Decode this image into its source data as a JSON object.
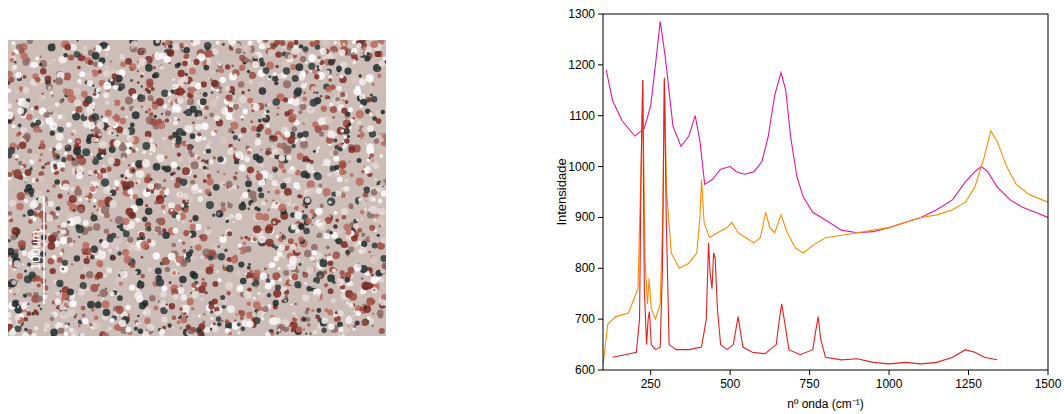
{
  "chart_data": {
    "type": "line",
    "x_label": "nº onda (cm⁻¹)",
    "y_label": "Intensidade",
    "xlim": [
      100,
      1500
    ],
    "ylim": [
      600,
      1300
    ],
    "xticks": [
      250,
      500,
      750,
      1000,
      1250,
      1500
    ],
    "yticks": [
      600,
      700,
      800,
      900,
      1000,
      1100,
      1200,
      1300
    ],
    "grid": false,
    "series": [
      {
        "color": "#e0189c",
        "x": [
          110,
          130,
          160,
          200,
          230,
          250,
          265,
          280,
          295,
          320,
          345,
          370,
          390,
          405,
          420,
          445,
          470,
          500,
          520,
          545,
          575,
          600,
          620,
          640,
          660,
          675,
          690,
          710,
          730,
          760,
          800,
          850,
          900,
          950,
          1000,
          1050,
          1100,
          1150,
          1200,
          1240,
          1270,
          1290,
          1310,
          1340,
          1380,
          1420,
          1460,
          1500
        ],
        "values": [
          1190,
          1130,
          1090,
          1060,
          1075,
          1120,
          1200,
          1285,
          1220,
          1080,
          1040,
          1060,
          1100,
          1050,
          965,
          975,
          995,
          1000,
          990,
          985,
          990,
          1010,
          1060,
          1140,
          1185,
          1150,
          1060,
          980,
          940,
          910,
          895,
          875,
          870,
          872,
          880,
          890,
          900,
          915,
          935,
          970,
          990,
          1000,
          990,
          960,
          935,
          920,
          910,
          900
        ]
      },
      {
        "color": "#ff8c00",
        "x": [
          100,
          115,
          140,
          180,
          210,
          220,
          225,
          232,
          240,
          245,
          252,
          265,
          280,
          288,
          293,
          300,
          315,
          340,
          370,
          395,
          405,
          410,
          418,
          435,
          460,
          490,
          505,
          525,
          550,
          575,
          595,
          612,
          625,
          640,
          660,
          680,
          705,
          730,
          760,
          800,
          850,
          900,
          950,
          1000,
          1050,
          1100,
          1150,
          1200,
          1240,
          1270,
          1300,
          1320,
          1340,
          1370,
          1400,
          1440,
          1480,
          1500
        ],
        "values": [
          610,
          690,
          705,
          712,
          760,
          1000,
          1170,
          820,
          730,
          780,
          720,
          700,
          730,
          900,
          1170,
          950,
          830,
          800,
          810,
          830,
          900,
          975,
          890,
          860,
          870,
          880,
          890,
          870,
          860,
          850,
          860,
          910,
          880,
          870,
          905,
          870,
          840,
          830,
          845,
          860,
          865,
          870,
          875,
          880,
          890,
          900,
          905,
          915,
          930,
          960,
          1020,
          1070,
          1050,
          1000,
          965,
          945,
          935,
          930
        ]
      },
      {
        "color": "#e2201c",
        "x": [
          130,
          170,
          205,
          215,
          220,
          225,
          230,
          237,
          242,
          246,
          252,
          265,
          280,
          287,
          293,
          299,
          308,
          330,
          370,
          410,
          425,
          432,
          437,
          443,
          448,
          453,
          460,
          470,
          490,
          510,
          525,
          540,
          570,
          610,
          645,
          655,
          662,
          670,
          685,
          720,
          760,
          770,
          777,
          785,
          800,
          850,
          900,
          950,
          1000,
          1050,
          1100,
          1150,
          1200,
          1240,
          1270,
          1300,
          1340
        ],
        "values": [
          625,
          630,
          635,
          700,
          1000,
          1170,
          760,
          650,
          700,
          715,
          650,
          640,
          645,
          800,
          1175,
          900,
          650,
          640,
          640,
          645,
          700,
          850,
          790,
          760,
          830,
          820,
          720,
          650,
          640,
          650,
          705,
          645,
          635,
          632,
          650,
          700,
          730,
          700,
          640,
          630,
          640,
          680,
          705,
          660,
          625,
          620,
          622,
          615,
          612,
          615,
          612,
          615,
          625,
          640,
          635,
          625,
          620
        ]
      }
    ]
  },
  "image": {
    "scale_label": "100um"
  }
}
